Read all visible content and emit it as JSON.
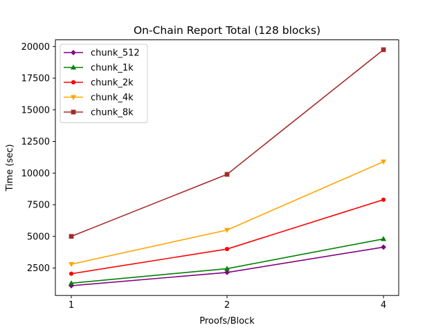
{
  "chart_data": {
    "type": "line",
    "title": "On-Chain Report Total (128 blocks)",
    "xlabel": "Proofs/Block",
    "ylabel": "Time (sec)",
    "categories": [
      "1",
      "2",
      "4"
    ],
    "yticks": [
      2500,
      5000,
      7500,
      10000,
      12500,
      15000,
      17500,
      20000
    ],
    "ylim": [
      330,
      20530
    ],
    "grid": false,
    "legend_position": "top-left",
    "series": [
      {
        "name": "chunk_512",
        "color": "#800080",
        "marker": "diamond",
        "values": [
          1100,
          2150,
          4150
        ]
      },
      {
        "name": "chunk_1k",
        "color": "#008000",
        "marker": "triangle-up",
        "values": [
          1300,
          2450,
          4800
        ]
      },
      {
        "name": "chunk_2k",
        "color": "#ff0000",
        "marker": "circle",
        "values": [
          2050,
          4000,
          7900
        ]
      },
      {
        "name": "chunk_4k",
        "color": "#ffa500",
        "marker": "triangle-down",
        "values": [
          2800,
          5500,
          10900
        ]
      },
      {
        "name": "chunk_8k",
        "color": "#a52a2a",
        "marker": "square",
        "values": [
          5000,
          9900,
          19750
        ]
      }
    ]
  }
}
